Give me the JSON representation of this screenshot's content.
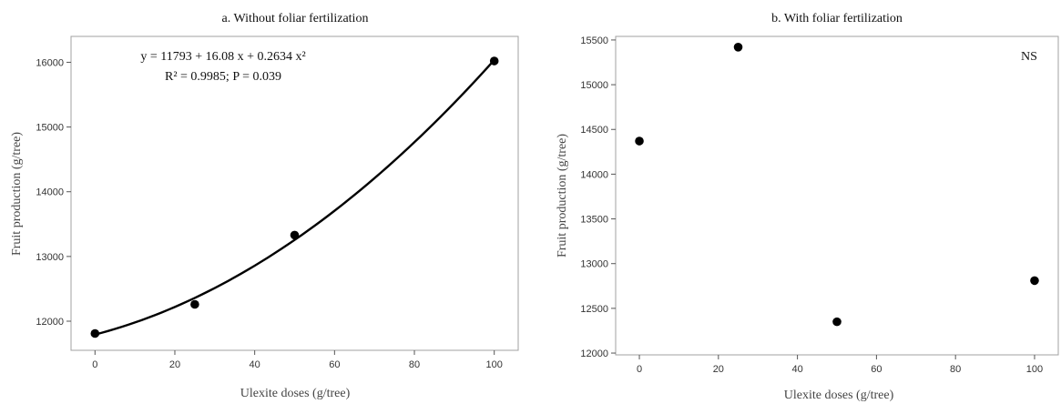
{
  "chart_data": [
    {
      "type": "scatter",
      "title": "a. Without foliar fertilization",
      "xlabel": "Ulexite doses (g/tree)",
      "ylabel": "Fruit production (g/tree)",
      "xlim": [
        -6,
        106
      ],
      "ylim": [
        11550,
        16400
      ],
      "xticks": [
        0,
        20,
        40,
        60,
        80,
        100
      ],
      "yticks": [
        12000,
        13000,
        14000,
        15000,
        16000
      ],
      "x": [
        0,
        25,
        50,
        100
      ],
      "y": [
        11810,
        12260,
        13330,
        16020
      ],
      "fit": {
        "a": 11793,
        "b": 16.08,
        "c": 0.2634,
        "x_range": [
          0,
          100
        ]
      },
      "annotations": [
        "y = 11793 + 16.08 x + 0.2634 x²",
        "R² = 0.9985; P = 0.039"
      ],
      "grid": false
    },
    {
      "type": "scatter",
      "title": "b. With foliar fertilization",
      "xlabel": "Ulexite doses (g/tree)",
      "ylabel": "Fruit production (g/tree)",
      "xlim": [
        -6,
        106
      ],
      "ylim": [
        11980,
        15540
      ],
      "xticks": [
        0,
        20,
        40,
        60,
        80,
        100
      ],
      "yticks": [
        12000,
        12500,
        13000,
        13500,
        14000,
        14500,
        15000,
        15500
      ],
      "x": [
        0,
        25,
        50,
        100
      ],
      "y": [
        14370,
        15420,
        12350,
        12810
      ],
      "annotations": [
        "NS"
      ],
      "grid": false
    }
  ]
}
